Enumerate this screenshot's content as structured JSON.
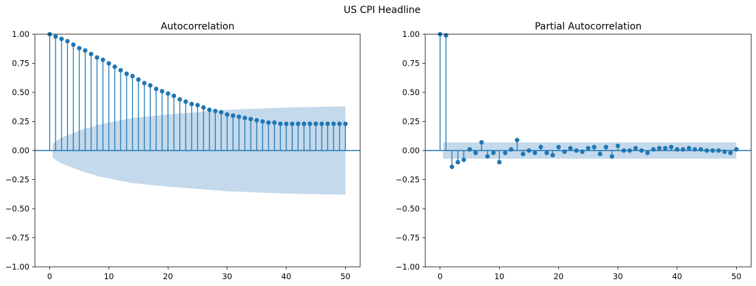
{
  "figure": {
    "title": "US CPI Headline"
  },
  "chart_data": [
    {
      "type": "stem",
      "title": "Autocorrelation",
      "xlim": [
        -2.5,
        52.5
      ],
      "ylim": [
        -1.0,
        1.0
      ],
      "x_ticks": [
        0,
        10,
        20,
        30,
        40,
        50
      ],
      "y_ticks": [
        -1.0,
        -0.75,
        -0.5,
        -0.25,
        0.0,
        0.25,
        0.5,
        0.75,
        1.0
      ],
      "x_tick_labels": [
        "0",
        "10",
        "20",
        "30",
        "40",
        "50"
      ],
      "y_tick_labels": [
        "−1.00",
        "−0.75",
        "−0.50",
        "−0.25",
        "0.00",
        "0.25",
        "0.50",
        "0.75",
        "1.00"
      ],
      "lags": [
        0,
        1,
        2,
        3,
        4,
        5,
        6,
        7,
        8,
        9,
        10,
        11,
        12,
        13,
        14,
        15,
        16,
        17,
        18,
        19,
        20,
        21,
        22,
        23,
        24,
        25,
        26,
        27,
        28,
        29,
        30,
        31,
        32,
        33,
        34,
        35,
        36,
        37,
        38,
        39,
        40,
        41,
        42,
        43,
        44,
        45,
        46,
        47,
        48,
        49,
        50
      ],
      "values": [
        1.0,
        0.98,
        0.96,
        0.94,
        0.91,
        0.88,
        0.86,
        0.83,
        0.8,
        0.78,
        0.75,
        0.72,
        0.69,
        0.66,
        0.64,
        0.61,
        0.58,
        0.56,
        0.53,
        0.51,
        0.49,
        0.47,
        0.44,
        0.42,
        0.4,
        0.39,
        0.37,
        0.35,
        0.34,
        0.33,
        0.31,
        0.3,
        0.29,
        0.28,
        0.27,
        0.26,
        0.25,
        0.24,
        0.24,
        0.23,
        0.23,
        0.23,
        0.23,
        0.23,
        0.23,
        0.23,
        0.23,
        0.23,
        0.23,
        0.23,
        0.23
      ],
      "confidence_band": {
        "lags": [
          0.5,
          1,
          2,
          3,
          4,
          5,
          6,
          7,
          8,
          10,
          12,
          14,
          16,
          18,
          20,
          25,
          30,
          35,
          40,
          45,
          50
        ],
        "upper": [
          0.06,
          0.08,
          0.11,
          0.13,
          0.15,
          0.17,
          0.19,
          0.2,
          0.22,
          0.24,
          0.26,
          0.28,
          0.29,
          0.3,
          0.31,
          0.33,
          0.35,
          0.36,
          0.37,
          0.375,
          0.38
        ],
        "lower": [
          -0.06,
          -0.08,
          -0.11,
          -0.13,
          -0.15,
          -0.17,
          -0.19,
          -0.2,
          -0.22,
          -0.24,
          -0.26,
          -0.28,
          -0.29,
          -0.3,
          -0.31,
          -0.33,
          -0.35,
          -0.36,
          -0.37,
          -0.375,
          -0.38
        ]
      },
      "colors": {
        "stem": "#1f77b4",
        "band": "#b5cfe6"
      }
    },
    {
      "type": "stem",
      "title": "Partial Autocorrelation",
      "xlim": [
        -2.5,
        52.5
      ],
      "ylim": [
        -1.0,
        1.0
      ],
      "x_ticks": [
        0,
        10,
        20,
        30,
        40,
        50
      ],
      "y_ticks": [
        -1.0,
        -0.75,
        -0.5,
        -0.25,
        0.0,
        0.25,
        0.5,
        0.75,
        1.0
      ],
      "x_tick_labels": [
        "0",
        "10",
        "20",
        "30",
        "40",
        "50"
      ],
      "y_tick_labels": [
        "−1.00",
        "−0.75",
        "−0.50",
        "−0.25",
        "0.00",
        "0.25",
        "0.50",
        "0.75",
        "1.00"
      ],
      "lags": [
        0,
        1,
        2,
        3,
        4,
        5,
        6,
        7,
        8,
        9,
        10,
        11,
        12,
        13,
        14,
        15,
        16,
        17,
        18,
        19,
        20,
        21,
        22,
        23,
        24,
        25,
        26,
        27,
        28,
        29,
        30,
        31,
        32,
        33,
        34,
        35,
        36,
        37,
        38,
        39,
        40,
        41,
        42,
        43,
        44,
        45,
        46,
        47,
        48,
        49,
        50
      ],
      "values": [
        1.0,
        0.99,
        -0.14,
        -0.1,
        -0.08,
        0.01,
        -0.02,
        0.07,
        -0.05,
        -0.02,
        -0.1,
        -0.02,
        0.01,
        0.09,
        -0.03,
        0.0,
        -0.02,
        0.03,
        -0.02,
        -0.04,
        0.03,
        -0.01,
        0.02,
        0.0,
        -0.01,
        0.02,
        0.03,
        -0.03,
        0.03,
        -0.05,
        0.04,
        0.0,
        0.0,
        0.02,
        0.0,
        -0.02,
        0.01,
        0.02,
        0.02,
        0.03,
        0.01,
        0.01,
        0.02,
        0.01,
        0.01,
        0.0,
        0.0,
        0.0,
        -0.01,
        -0.02,
        0.01
      ],
      "confidence_band": {
        "lags": [
          0.5,
          50
        ],
        "upper": [
          0.07,
          0.07
        ],
        "lower": [
          -0.07,
          -0.07
        ]
      },
      "colors": {
        "stem": "#1f77b4",
        "band": "#b5cfe6"
      }
    }
  ]
}
